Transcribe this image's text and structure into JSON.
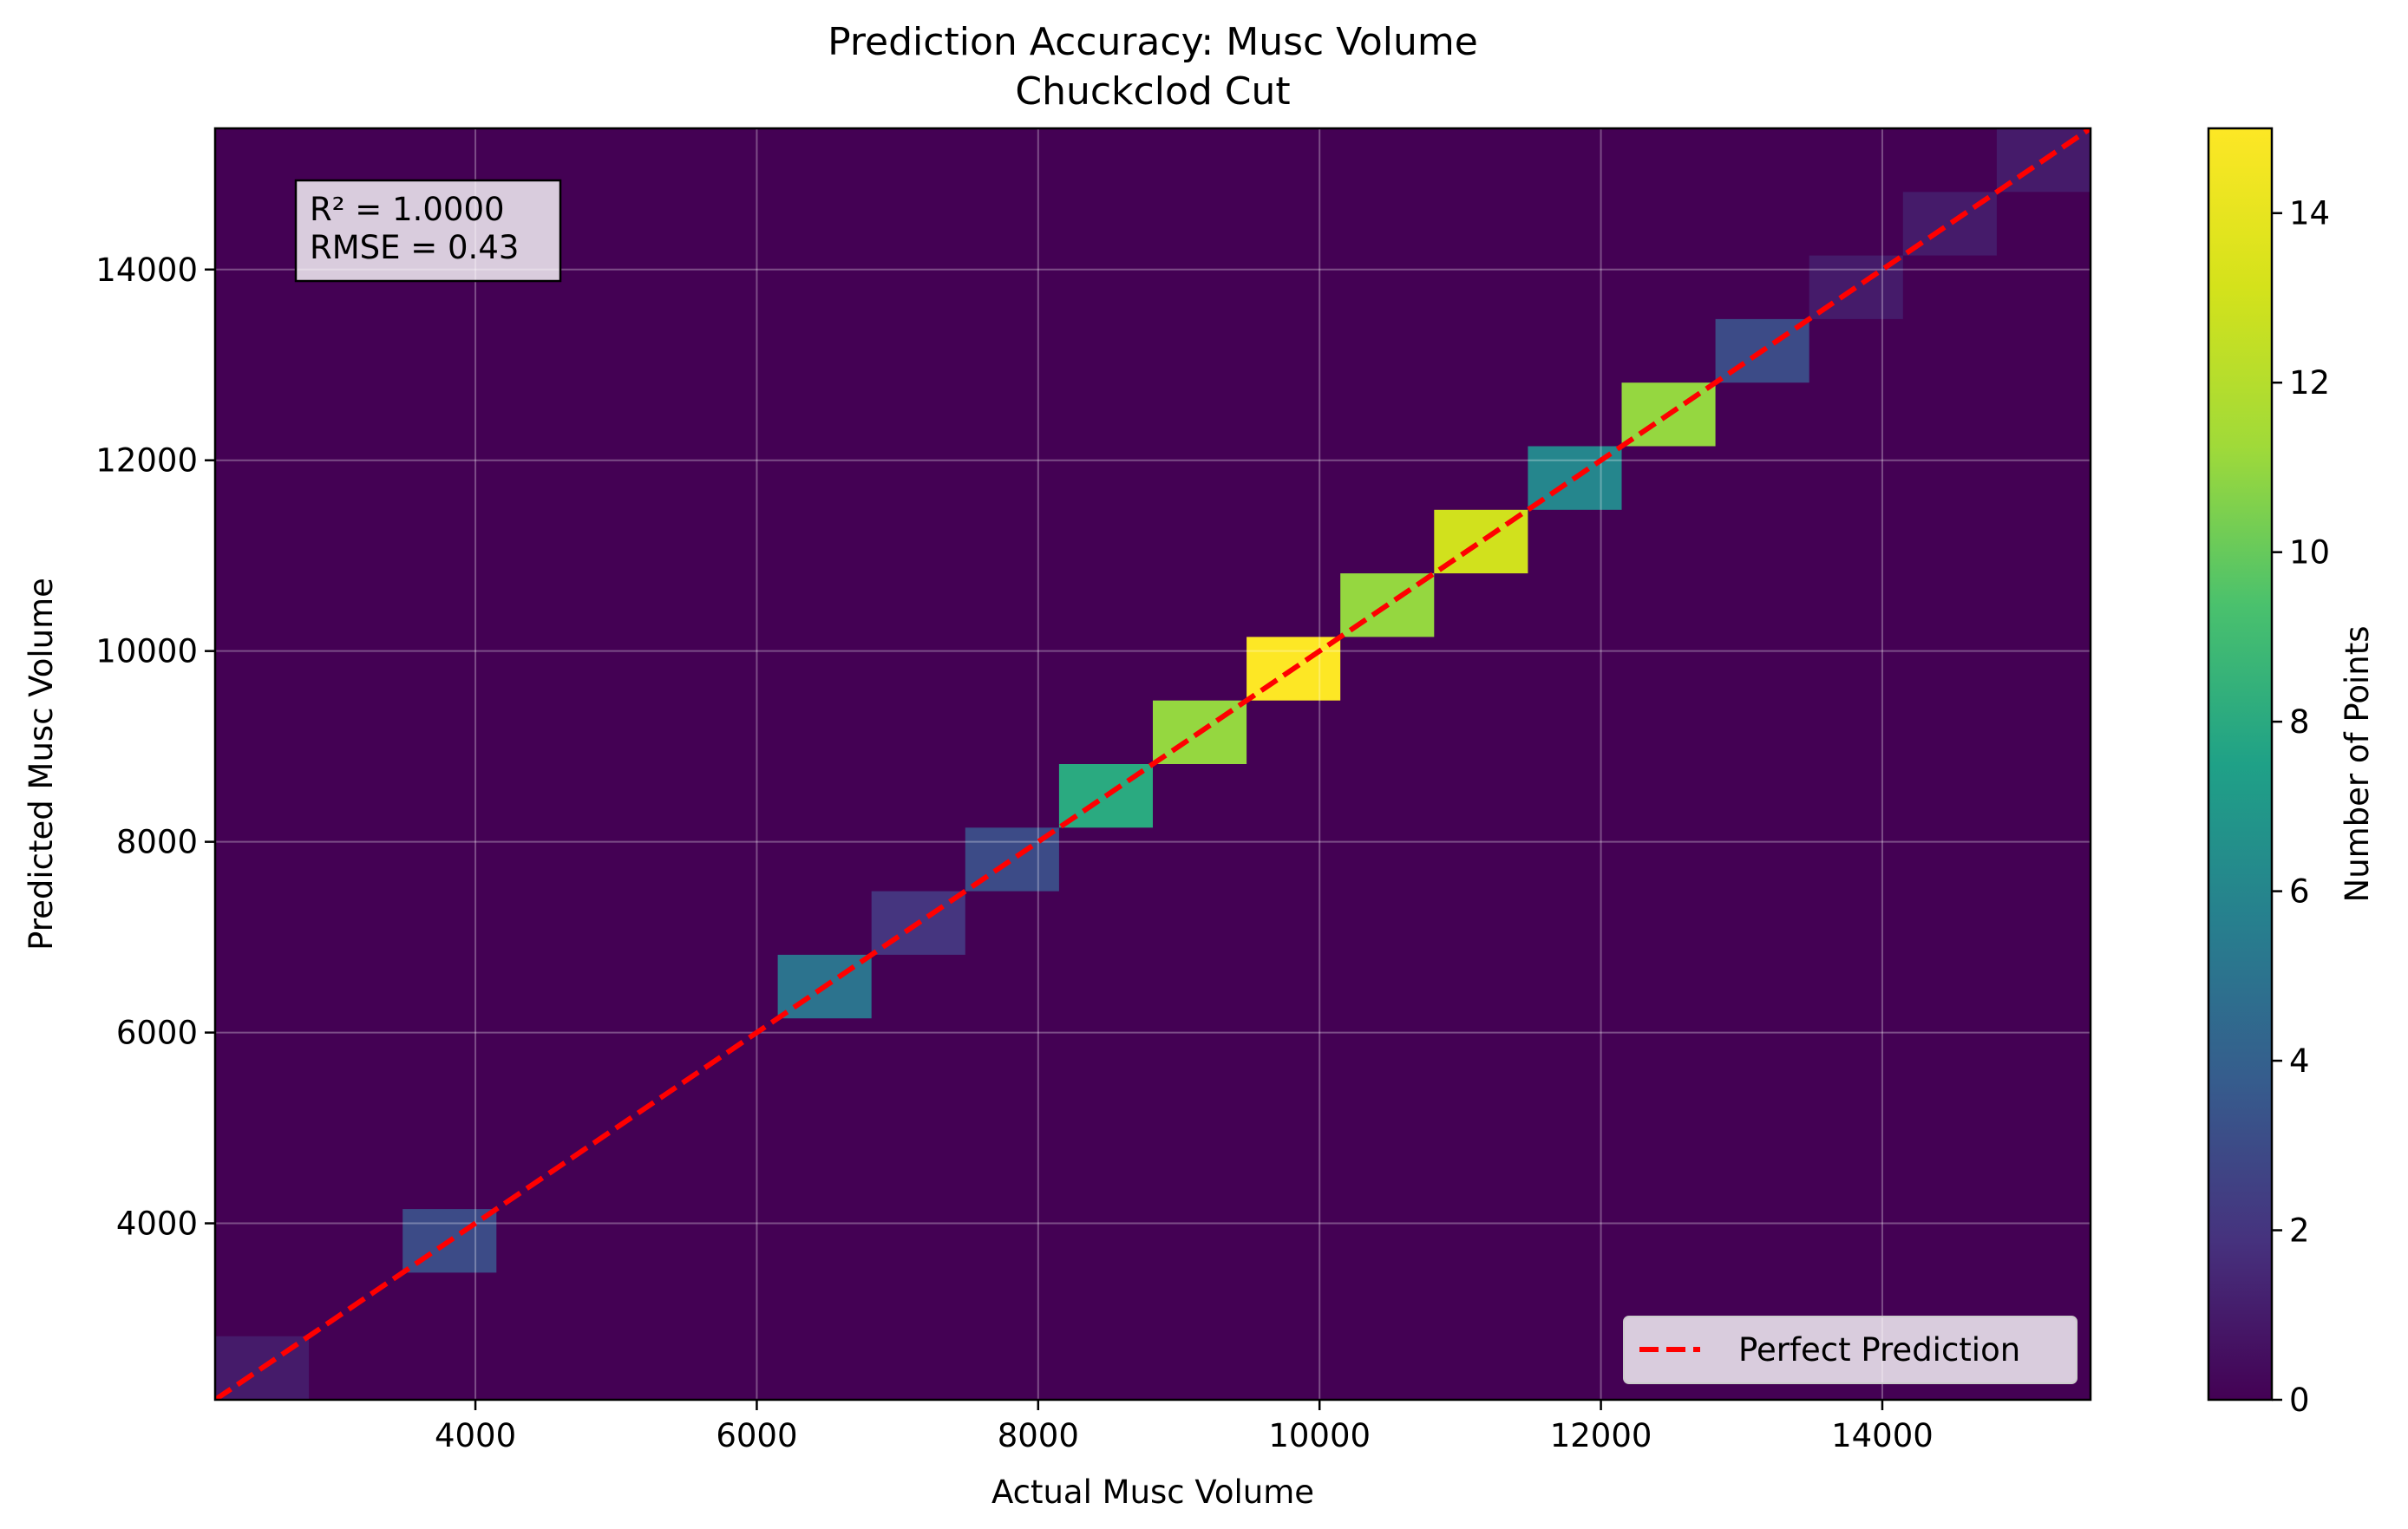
{
  "chart_data": {
    "type": "heatmap",
    "title": "Prediction Accuracy: Musc Volume",
    "subtitle": "Chuckclod Cut",
    "xlabel": "Actual Musc Volume",
    "ylabel": "Predicted Musc Volume",
    "xlim": [
      2150,
      15480
    ],
    "ylim": [
      2150,
      15480
    ],
    "x_ticks": [
      4000,
      6000,
      8000,
      10000,
      12000,
      14000
    ],
    "y_ticks": [
      4000,
      6000,
      8000,
      10000,
      12000,
      14000
    ],
    "grid": true,
    "colormap": "viridis",
    "colorbar": {
      "label": "Number of Points",
      "range": [
        0,
        15
      ],
      "ticks": [
        0,
        2,
        4,
        6,
        8,
        10,
        12,
        14
      ]
    },
    "bin_size": 666.5,
    "bins": [
      {
        "x0": 2150,
        "x1": 2816.5,
        "y0": 2150,
        "y1": 2816.5,
        "count": 1
      },
      {
        "x0": 3483,
        "x1": 4149.5,
        "y0": 3483,
        "y1": 4149.5,
        "count": 3
      },
      {
        "x0": 6149,
        "x1": 6815.5,
        "y0": 6149,
        "y1": 6815.5,
        "count": 5
      },
      {
        "x0": 6815.5,
        "x1": 7482,
        "y0": 6815.5,
        "y1": 7482,
        "count": 2
      },
      {
        "x0": 7482,
        "x1": 8148.5,
        "y0": 7482,
        "y1": 8148.5,
        "count": 3
      },
      {
        "x0": 8148.5,
        "x1": 8815,
        "y0": 8148.5,
        "y1": 8815,
        "count": 8
      },
      {
        "x0": 8815,
        "x1": 9481.5,
        "y0": 8815,
        "y1": 9481.5,
        "count": 11
      },
      {
        "x0": 9481.5,
        "x1": 10148,
        "y0": 9481.5,
        "y1": 10148,
        "count": 15
      },
      {
        "x0": 10148,
        "x1": 10814.5,
        "y0": 10148,
        "y1": 10814.5,
        "count": 11
      },
      {
        "x0": 10814.5,
        "x1": 11481,
        "y0": 10814.5,
        "y1": 11481,
        "count": 13
      },
      {
        "x0": 11481,
        "x1": 12147.5,
        "y0": 11481,
        "y1": 12147.5,
        "count": 6
      },
      {
        "x0": 12147.5,
        "x1": 12814,
        "y0": 12147.5,
        "y1": 12814,
        "count": 11
      },
      {
        "x0": 12814,
        "x1": 13480.5,
        "y0": 12814,
        "y1": 13480.5,
        "count": 3
      },
      {
        "x0": 13480.5,
        "x1": 14147,
        "y0": 13480.5,
        "y1": 14147,
        "count": 1
      },
      {
        "x0": 14147,
        "x1": 14813.5,
        "y0": 14147,
        "y1": 14813.5,
        "count": 1
      },
      {
        "x0": 14813.5,
        "x1": 15480,
        "y0": 14813.5,
        "y1": 15480,
        "count": 1
      }
    ],
    "reference_line": {
      "name": "Perfect Prediction",
      "color": "#ff0000",
      "style": "dashed"
    },
    "legend": {
      "placement": "lower-right",
      "entries": [
        "Perfect Prediction"
      ]
    },
    "annotation": {
      "placement": "top-left",
      "lines": [
        "R² = 1.0000",
        "RMSE = 0.43"
      ]
    }
  }
}
